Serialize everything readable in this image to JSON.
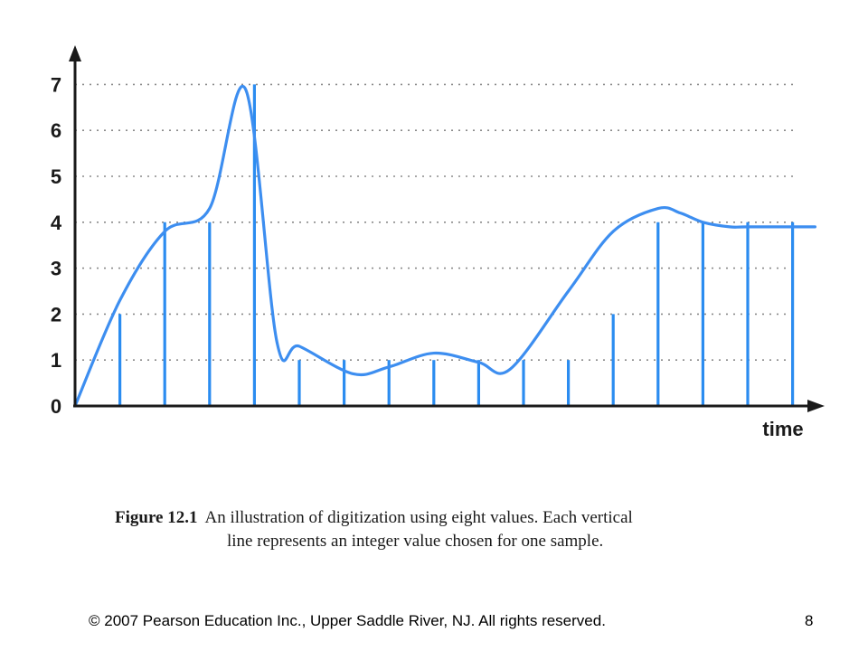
{
  "chart_data": {
    "type": "line",
    "xlabel": "time",
    "ylabel": "",
    "ylim": [
      0,
      7
    ],
    "yticks": [
      "0",
      "1",
      "2",
      "3",
      "4",
      "5",
      "6",
      "7"
    ],
    "grid": true,
    "signal_color": "#3d8ef0",
    "sample_color": "#2b8cf0",
    "signal": {
      "x": [
        0,
        1,
        2,
        3,
        3.8,
        4.5,
        5,
        6.2,
        7,
        8,
        9,
        9.7,
        11,
        12,
        13,
        13.5,
        14,
        14.6,
        15,
        16.5
      ],
      "y": [
        0,
        2.3,
        3.8,
        4.3,
        6.9,
        1.4,
        1.3,
        0.7,
        0.85,
        1.15,
        0.95,
        0.8,
        2.5,
        3.8,
        4.3,
        4.2,
        4.0,
        3.9,
        3.9,
        3.9
      ]
    },
    "samples": {
      "x": [
        1,
        2,
        3,
        4,
        5,
        6,
        7,
        8,
        9,
        10,
        11,
        12,
        13,
        14,
        15,
        16
      ],
      "values": [
        2,
        4,
        4,
        7,
        1,
        1,
        1,
        1,
        1,
        1,
        1,
        2,
        4,
        4,
        4,
        4
      ]
    }
  },
  "caption": {
    "label": "Figure 12.1",
    "line1": "An illustration of digitization using eight values.  Each vertical",
    "line2": "line represents an integer value chosen for one sample."
  },
  "footer": {
    "copyright": "© 2007 Pearson Education Inc., Upper Saddle River, NJ. All rights reserved.",
    "page_number": "8"
  }
}
